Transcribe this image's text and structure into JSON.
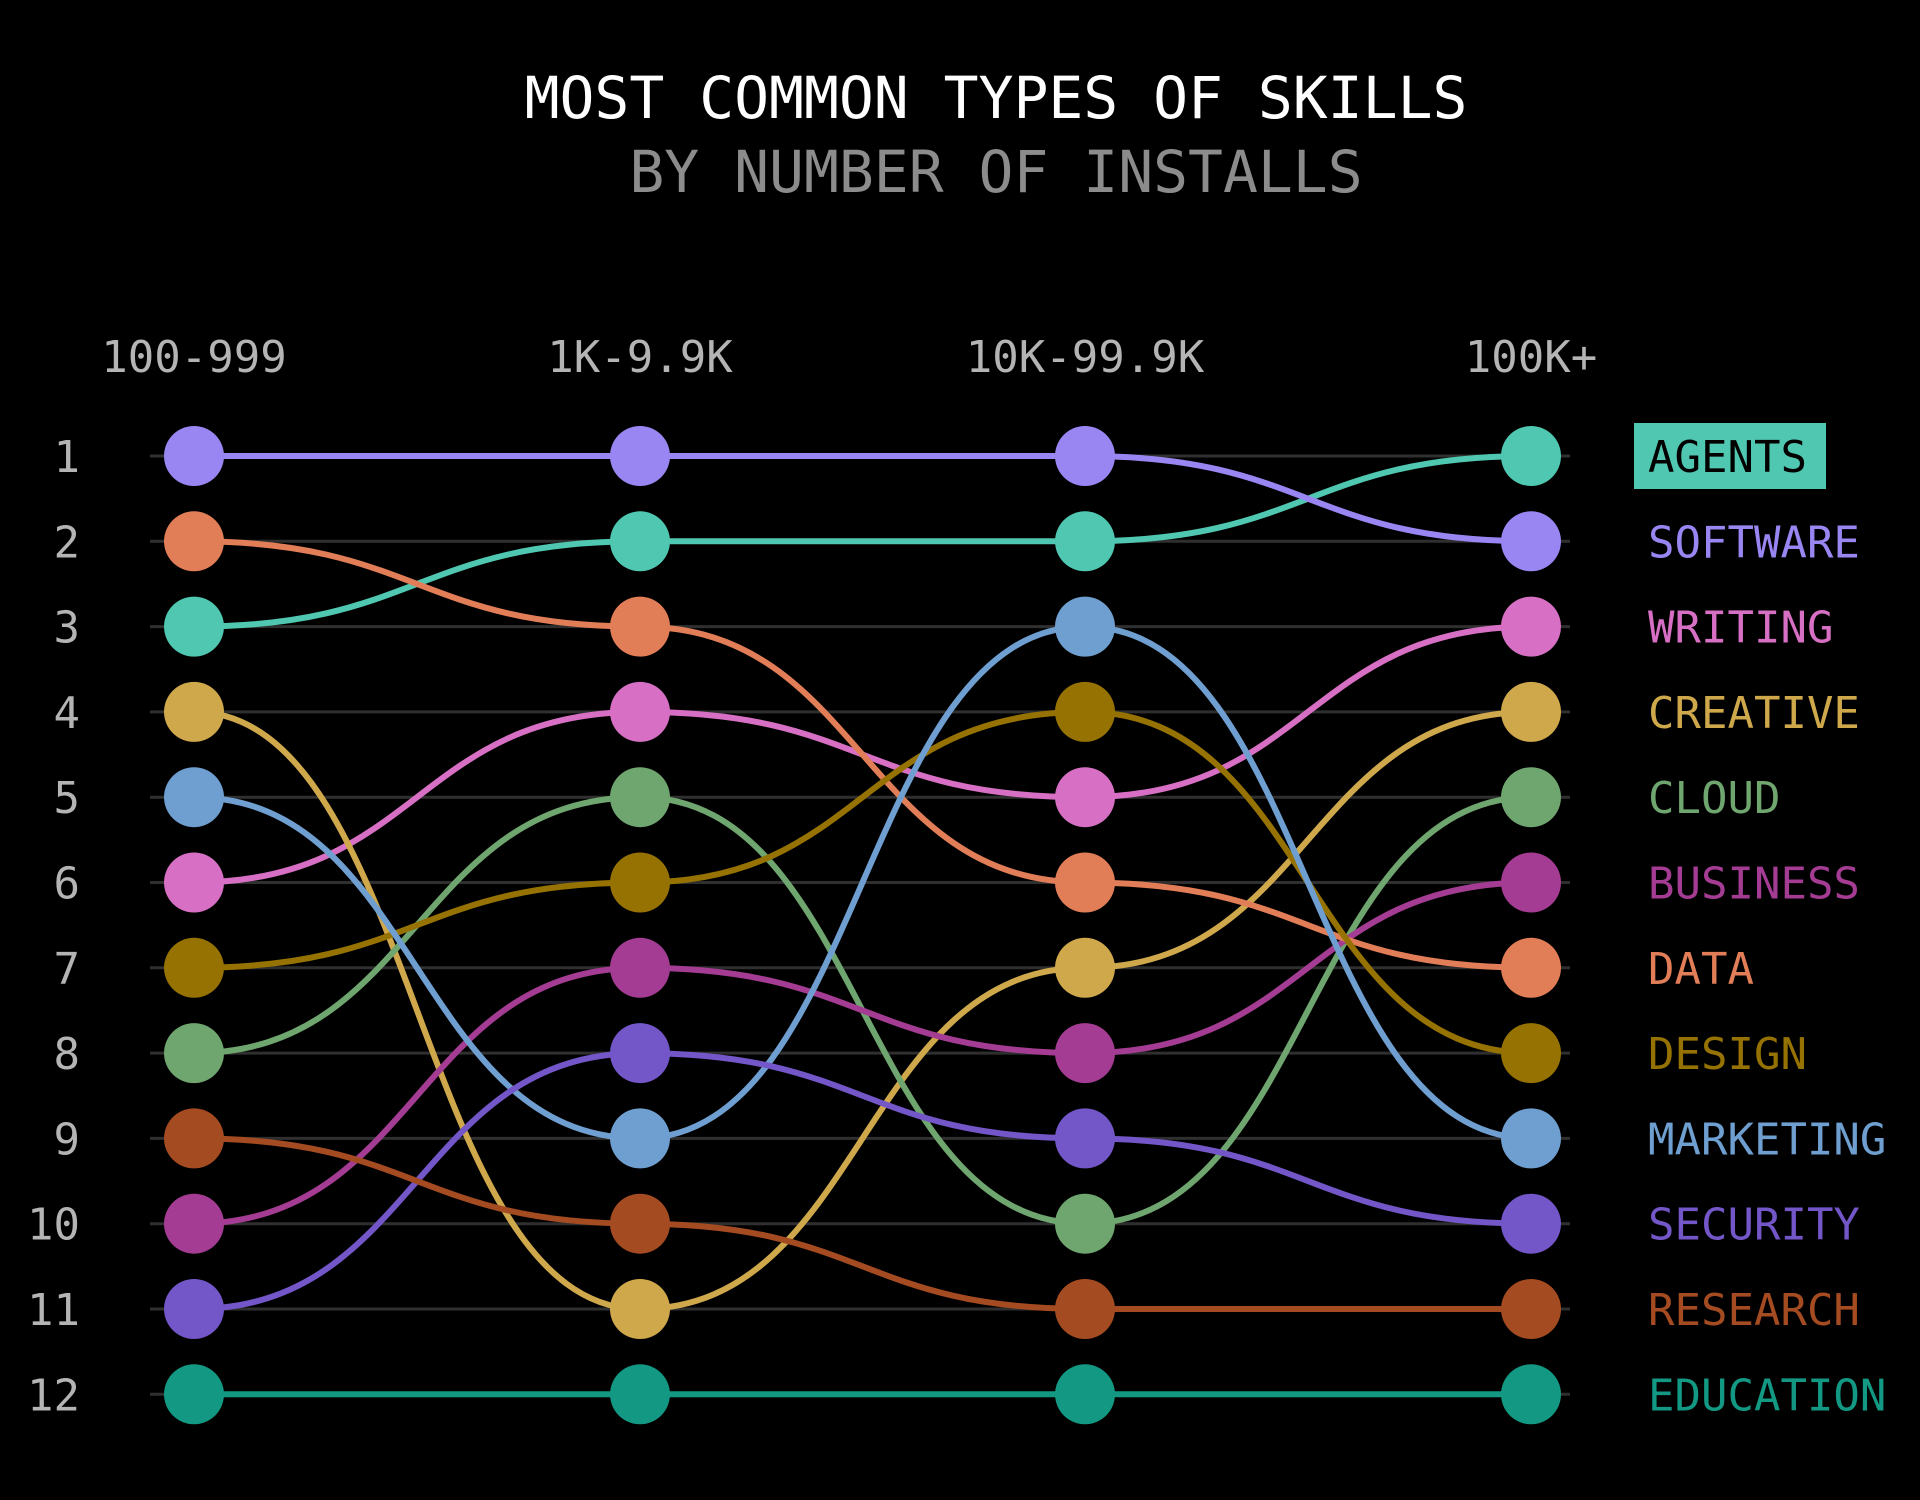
{
  "chart_data": {
    "type": "bump",
    "title": "MOST COMMON TYPES OF SKILLS",
    "subtitle": "BY NUMBER OF INSTALLS",
    "categories": [
      "100-999",
      "1K-9.9K",
      "10K-99.9K",
      "100K+"
    ],
    "ranks": [
      1,
      2,
      3,
      4,
      5,
      6,
      7,
      8,
      9,
      10,
      11,
      12
    ],
    "grid": true,
    "legend": "right",
    "highlighted_series": "AGENTS",
    "series": [
      {
        "name": "AGENTS",
        "color": "#4fc7b1",
        "values": [
          3,
          2,
          2,
          1
        ]
      },
      {
        "name": "SOFTWARE",
        "color": "#9a86f2",
        "values": [
          1,
          1,
          1,
          2
        ]
      },
      {
        "name": "WRITING",
        "color": "#d770c4",
        "values": [
          6,
          4,
          5,
          3
        ]
      },
      {
        "name": "CREATIVE",
        "color": "#cfa84c",
        "values": [
          4,
          11,
          7,
          4
        ]
      },
      {
        "name": "CLOUD",
        "color": "#6fa56e",
        "values": [
          8,
          5,
          10,
          5
        ]
      },
      {
        "name": "BUSINESS",
        "color": "#a33c92",
        "values": [
          10,
          7,
          8,
          6
        ]
      },
      {
        "name": "DATA",
        "color": "#e27e57",
        "values": [
          2,
          3,
          6,
          7
        ]
      },
      {
        "name": "DESIGN",
        "color": "#957202",
        "values": [
          7,
          6,
          4,
          8
        ]
      },
      {
        "name": "MARKETING",
        "color": "#6f9fd0",
        "values": [
          5,
          9,
          3,
          9
        ]
      },
      {
        "name": "SECURITY",
        "color": "#7356c7",
        "values": [
          11,
          8,
          9,
          10
        ]
      },
      {
        "name": "RESEARCH",
        "color": "#a54b21",
        "values": [
          9,
          10,
          11,
          11
        ]
      },
      {
        "name": "EDUCATION",
        "color": "#139983",
        "values": [
          12,
          12,
          12,
          12
        ]
      }
    ]
  }
}
